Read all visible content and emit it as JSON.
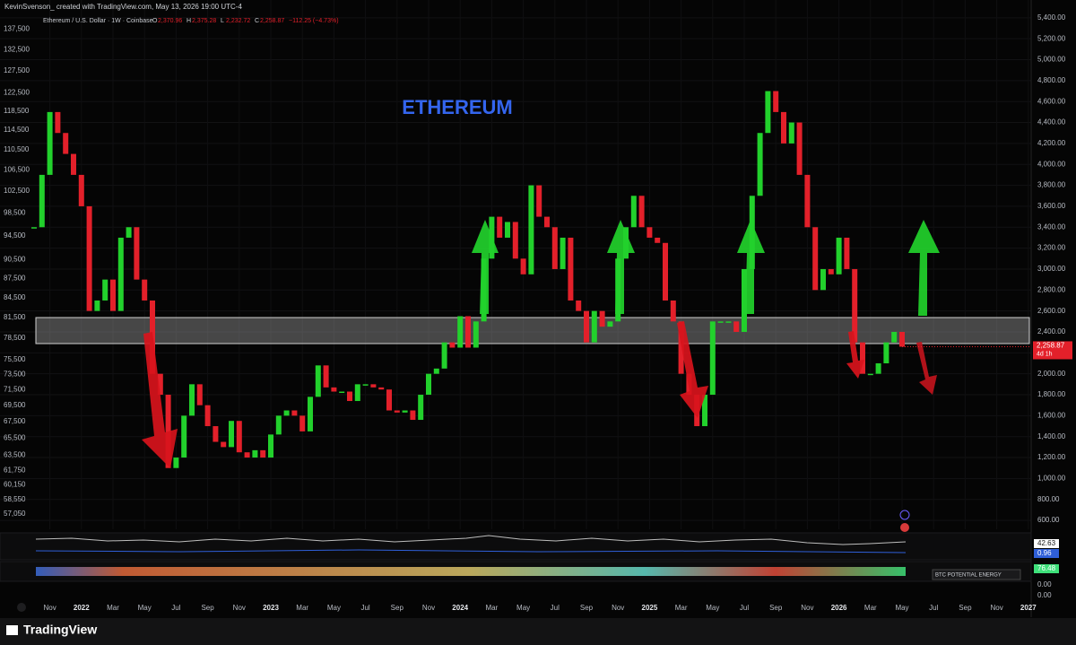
{
  "credit": "KevinSvenson_ created with TradingView.com, May 13, 2026 19:00 UTC-4",
  "brand": "TradingView",
  "chart_data": {
    "type": "candlestick",
    "title": "ETHEREUM",
    "symbol": "Ethereum / U.S. Dollar · 1W · Coinbase",
    "ohlc": [
      {
        "key": "O",
        "value": 2370.96,
        "label": "2,370.96"
      },
      {
        "key": "H",
        "value": 2375.28,
        "label": "2,375.28"
      },
      {
        "key": "L",
        "value": 2232.72,
        "label": "2,232.72"
      },
      {
        "key": "C",
        "value": 2258.87,
        "label": "2,258.87"
      }
    ],
    "change": {
      "value": -112.25,
      "label": "−112.25 (−4.73%)"
    },
    "up_color": "#22d12c",
    "down_color": "#e3202a",
    "values": [
      3400,
      3900,
      4500,
      4300,
      4100,
      3900,
      3600,
      2600,
      2700,
      2900,
      2600,
      3300,
      3400,
      2900,
      2700,
      2000,
      1800,
      1100,
      1200,
      1600,
      1900,
      1700,
      1500,
      1350,
      1300,
      1550,
      1250,
      1200,
      1270,
      1200,
      1420,
      1600,
      1650,
      1600,
      1450,
      1780,
      2080,
      1870,
      1830,
      1830,
      1740,
      1900,
      1900,
      1870,
      1850,
      1650,
      1630,
      1650,
      1560,
      1800,
      2000,
      2050,
      2300,
      2250,
      2550,
      2250,
      2500,
      3100,
      3500,
      3300,
      3450,
      3100,
      2950,
      3800,
      3500,
      3400,
      3000,
      3300,
      2700,
      2600,
      2300,
      2600,
      2450,
      2500,
      3100,
      3400,
      3700,
      3400,
      3300,
      3250,
      2700,
      2500,
      2000,
      1800,
      1500,
      1800,
      2500,
      2500,
      2500,
      2400,
      3000,
      3700,
      4300,
      4700,
      4500,
      4200,
      4400,
      3900,
      3400,
      2800,
      3000,
      2950,
      3300,
      3000,
      2300,
      2000,
      2000,
      2100,
      2300,
      2400,
      2258.87
    ],
    "last_label": "2,258.87",
    "countdown": "4d 1h",
    "ylim": [
      515,
      5570
    ],
    "yticks": [
      {
        "value": 5400,
        "label": "5,400.00"
      },
      {
        "value": 5200,
        "label": "5,200.00"
      },
      {
        "value": 5000,
        "label": "5,000.00"
      },
      {
        "value": 4800,
        "label": "4,800.00"
      },
      {
        "value": 4600,
        "label": "4,600.00"
      },
      {
        "value": 4400,
        "label": "4,400.00"
      },
      {
        "value": 4200,
        "label": "4,200.00"
      },
      {
        "value": 4000,
        "label": "4,000.00"
      },
      {
        "value": 3800,
        "label": "3,800.00"
      },
      {
        "value": 3600,
        "label": "3,600.00"
      },
      {
        "value": 3400,
        "label": "3,400.00"
      },
      {
        "value": 3200,
        "label": "3,200.00"
      },
      {
        "value": 3000,
        "label": "3,000.00"
      },
      {
        "value": 2800,
        "label": "2,800.00"
      },
      {
        "value": 2600,
        "label": "2,600.00"
      },
      {
        "value": 2400,
        "label": "2,400.00"
      },
      {
        "value": 2200,
        "label": "2,200.00"
      },
      {
        "value": 2000,
        "label": "2,000.00"
      },
      {
        "value": 1800,
        "label": "1,800.00"
      },
      {
        "value": 1600,
        "label": "1,600.00"
      },
      {
        "value": 1400,
        "label": "1,400.00"
      },
      {
        "value": 1200,
        "label": "1,200.00"
      },
      {
        "value": 1000,
        "label": "1,000.00"
      },
      {
        "value": 800,
        "label": "800.00"
      },
      {
        "value": 600,
        "label": "600.00"
      }
    ],
    "y2lim": [
      55500,
      145000
    ],
    "y2log": true,
    "y2ticks": [
      {
        "value": 137500,
        "label": "137,500"
      },
      {
        "value": 132500,
        "label": "132,500"
      },
      {
        "value": 127500,
        "label": "127,500"
      },
      {
        "value": 122500,
        "label": "122,500"
      },
      {
        "value": 118500,
        "label": "118,500"
      },
      {
        "value": 114500,
        "label": "114,500"
      },
      {
        "value": 110500,
        "label": "110,500"
      },
      {
        "value": 106500,
        "label": "106,500"
      },
      {
        "value": 102500,
        "label": "102,500"
      },
      {
        "value": 98500,
        "label": "98,500"
      },
      {
        "value": 94500,
        "label": "94,500"
      },
      {
        "value": 90500,
        "label": "90,500"
      },
      {
        "value": 87500,
        "label": "87,500"
      },
      {
        "value": 84500,
        "label": "84,500"
      },
      {
        "value": 81500,
        "label": "81,500"
      },
      {
        "value": 78500,
        "label": "78,500"
      },
      {
        "value": 75500,
        "label": "75,500"
      },
      {
        "value": 73500,
        "label": "73,500"
      },
      {
        "value": 71500,
        "label": "71,500"
      },
      {
        "value": 69500,
        "label": "69,500"
      },
      {
        "value": 67500,
        "label": "67,500"
      },
      {
        "value": 65500,
        "label": "65,500"
      },
      {
        "value": 63500,
        "label": "63,500"
      },
      {
        "value": 61750,
        "label": "61,750"
      },
      {
        "value": 60150,
        "label": "60,150"
      },
      {
        "value": 58550,
        "label": "58,550"
      },
      {
        "value": 57050,
        "label": "57,050"
      }
    ],
    "xticks": [
      {
        "value": 2,
        "label": "Nov"
      },
      {
        "value": 6,
        "label": "2022"
      },
      {
        "value": 10,
        "label": "Mar"
      },
      {
        "value": 14,
        "label": "May"
      },
      {
        "value": 18,
        "label": "Jul"
      },
      {
        "value": 22,
        "label": "Sep"
      },
      {
        "value": 26,
        "label": "Nov"
      },
      {
        "value": 30,
        "label": "2023"
      },
      {
        "value": 34,
        "label": "Mar"
      },
      {
        "value": 38,
        "label": "May"
      },
      {
        "value": 42,
        "label": "Jul"
      },
      {
        "value": 46,
        "label": "Sep"
      },
      {
        "value": 50,
        "label": "Nov"
      },
      {
        "value": 54,
        "label": "2024"
      },
      {
        "value": 58,
        "label": "Mar"
      },
      {
        "value": 62,
        "label": "May"
      },
      {
        "value": 66,
        "label": "Jul"
      },
      {
        "value": 70,
        "label": "Sep"
      },
      {
        "value": 74,
        "label": "Nov"
      },
      {
        "value": 78,
        "label": "2025"
      },
      {
        "value": 82,
        "label": "Mar"
      },
      {
        "value": 86,
        "label": "May"
      },
      {
        "value": 90,
        "label": "Jul"
      },
      {
        "value": 94,
        "label": "Sep"
      },
      {
        "value": 98,
        "label": "Nov"
      },
      {
        "value": 102,
        "label": "2026"
      },
      {
        "value": 106,
        "label": "Mar"
      },
      {
        "value": 110,
        "label": "May"
      },
      {
        "value": 114,
        "label": "Jul"
      },
      {
        "value": 118,
        "label": "Sep"
      },
      {
        "value": 122,
        "label": "Nov"
      },
      {
        "value": 126,
        "label": "2027"
      }
    ],
    "grid": true,
    "indicator_label": "BTC POTENTIAL ENERGY",
    "pane_tags": [
      {
        "value": 42.63,
        "color": "#ffffff"
      },
      {
        "value": 0.96,
        "color": "#2f5fd8"
      },
      {
        "value": 76.48,
        "color": "#3ee07a"
      },
      {
        "value": 0,
        "label": "0.00"
      },
      {
        "value": 0,
        "label": "0.00"
      }
    ]
  }
}
